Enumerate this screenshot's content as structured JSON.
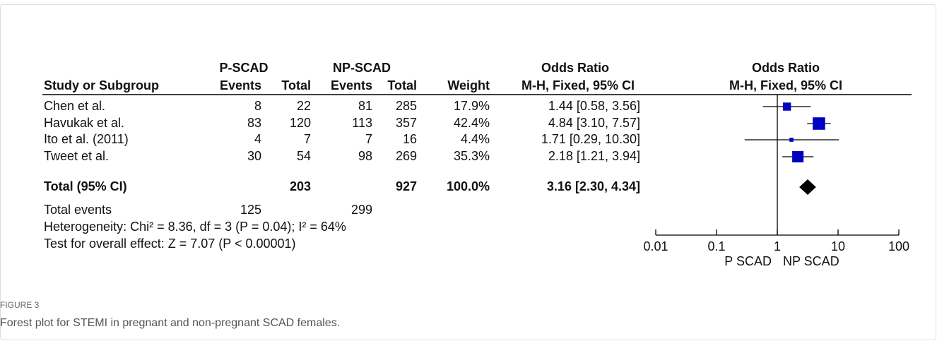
{
  "chart_data": {
    "type": "forest",
    "group_headers": [
      "P-SCAD",
      "NP-SCAD",
      "Odds Ratio",
      "Odds Ratio"
    ],
    "column_headers": [
      "Study or Subgroup",
      "Events",
      "Total",
      "Events",
      "Total",
      "Weight",
      "M-H, Fixed, 95% CI",
      "M-H, Fixed, 95% CI"
    ],
    "studies": [
      {
        "name": "Chen et al.",
        "p_events": 8,
        "p_total": 22,
        "np_events": 81,
        "np_total": 285,
        "weight": 17.9,
        "weight_label": "17.9%",
        "or": 1.44,
        "lo": 0.58,
        "hi": 3.56,
        "ci_label": "1.44 [0.58, 3.56]"
      },
      {
        "name": "Havukak et al.",
        "p_events": 83,
        "p_total": 120,
        "np_events": 113,
        "np_total": 357,
        "weight": 42.4,
        "weight_label": "42.4%",
        "or": 4.84,
        "lo": 3.1,
        "hi": 7.57,
        "ci_label": "4.84 [3.10, 7.57]"
      },
      {
        "name": "Ito et al. (2011)",
        "p_events": 4,
        "p_total": 7,
        "np_events": 7,
        "np_total": 16,
        "weight": 4.4,
        "weight_label": "4.4%",
        "or": 1.71,
        "lo": 0.29,
        "hi": 10.3,
        "ci_label": "1.71 [0.29, 10.30]"
      },
      {
        "name": "Tweet et al.",
        "p_events": 30,
        "p_total": 54,
        "np_events": 98,
        "np_total": 269,
        "weight": 35.3,
        "weight_label": "35.3%",
        "or": 2.18,
        "lo": 1.21,
        "hi": 3.94,
        "ci_label": "2.18 [1.21, 3.94]"
      }
    ],
    "total": {
      "name": "Total (95% CI)",
      "p_total": 203,
      "np_total": 927,
      "weight": 100,
      "weight_label": "100.0%",
      "or": 3.16,
      "lo": 2.3,
      "hi": 4.34,
      "ci_label": "3.16 [2.30, 4.34]"
    },
    "total_events": {
      "label": "Total events",
      "p": 125,
      "np": 299
    },
    "heterogeneity": "Heterogeneity: Chi² = 8.36, df = 3 (P = 0.04); I² = 64%",
    "overall_effect": "Test for overall effect: Z = 7.07 (P < 0.00001)",
    "xlim": [
      0.01,
      100
    ],
    "xticks": [
      0.01,
      0.1,
      1,
      10,
      100
    ],
    "log_x": true,
    "x_labels": [
      "P SCAD",
      "NP SCAD"
    ],
    "color": "#0000c0",
    "figure_label": "FIGURE 3",
    "caption": "Forest plot for STEMI in pregnant and non-pregnant SCAD females."
  }
}
